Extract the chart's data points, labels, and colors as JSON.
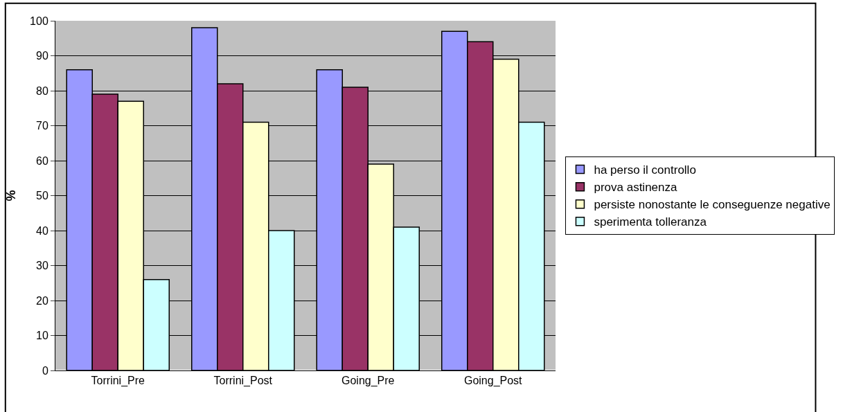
{
  "chart_data": {
    "type": "bar",
    "ylabel": "%",
    "categories": [
      "Torrini_Pre",
      "Torrini_Post",
      "Going_Pre",
      "Going_Post"
    ],
    "series": [
      {
        "name": "ha perso il controllo",
        "color": "#9999ff",
        "values": [
          86,
          98,
          86,
          97
        ]
      },
      {
        "name": "prova astinenza",
        "color": "#993366",
        "values": [
          79,
          82,
          81,
          94
        ]
      },
      {
        "name": "persiste nonostante le conseguenze negative",
        "color": "#ffffcc",
        "values": [
          77,
          71,
          59,
          89
        ]
      },
      {
        "name": "sperimenta tolleranza",
        "color": "#ccffff",
        "values": [
          26,
          40,
          41,
          71
        ]
      }
    ],
    "ylim": [
      0,
      100
    ],
    "yticks": [
      0,
      10,
      20,
      30,
      40,
      50,
      60,
      70,
      80,
      90,
      100
    ],
    "grid": "y",
    "legend": "right"
  }
}
